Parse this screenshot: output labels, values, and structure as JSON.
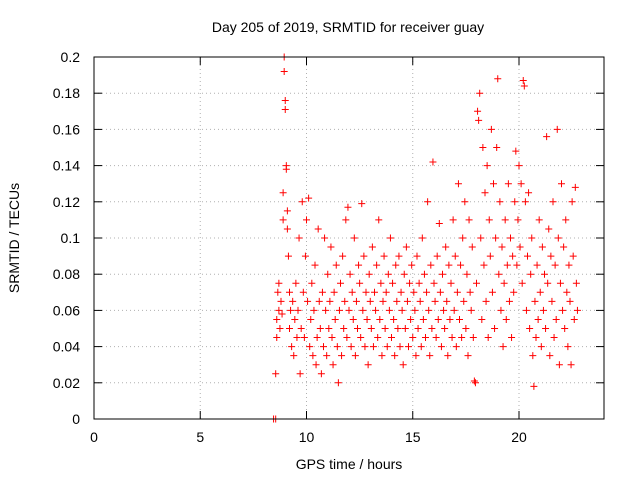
{
  "chart_data": {
    "type": "scatter",
    "title": "Day 205 of 2019, SRMTID for receiver guay",
    "xlabel": "GPS time / hours",
    "ylabel": "SRMTID / TECUs",
    "xlim": [
      0,
      24
    ],
    "ylim": [
      0,
      0.2
    ],
    "xticks": [
      0,
      5,
      10,
      15,
      20
    ],
    "xtick_labels": [
      "0",
      "5",
      "10",
      "15",
      "20"
    ],
    "yticks": [
      0,
      0.02,
      0.04,
      0.06,
      0.08,
      0.1,
      0.12,
      0.14,
      0.16,
      0.18,
      0.2
    ],
    "ytick_labels": [
      "0",
      "0.02",
      "0.04",
      "0.06",
      "0.08",
      "0.1",
      "0.12",
      "0.14",
      "0.16",
      "0.18",
      "0.2"
    ],
    "grid": true,
    "marker": "plus",
    "color": "#ff0000",
    "x_range_of_data": [
      8.4,
      22.8
    ],
    "series": [
      {
        "points": [
          [
            8.45,
            0.0
          ],
          [
            8.55,
            0.0
          ],
          [
            8.55,
            0.025
          ],
          [
            8.6,
            0.055
          ],
          [
            8.6,
            0.045
          ],
          [
            8.65,
            0.07
          ],
          [
            8.7,
            0.06
          ],
          [
            8.7,
            0.075
          ],
          [
            8.75,
            0.05
          ],
          [
            8.8,
            0.065
          ],
          [
            8.85,
            0.058
          ],
          [
            8.9,
            0.11
          ],
          [
            8.9,
            0.125
          ],
          [
            8.95,
            0.2
          ],
          [
            8.95,
            0.192
          ],
          [
            9.0,
            0.176
          ],
          [
            9.0,
            0.171
          ],
          [
            9.05,
            0.14
          ],
          [
            9.05,
            0.138
          ],
          [
            9.1,
            0.115
          ],
          [
            9.1,
            0.105
          ],
          [
            9.15,
            0.09
          ],
          [
            9.2,
            0.07
          ],
          [
            9.2,
            0.05
          ],
          [
            9.25,
            0.06
          ],
          [
            9.3,
            0.04
          ],
          [
            9.35,
            0.065
          ],
          [
            9.4,
            0.035
          ],
          [
            9.45,
            0.055
          ],
          [
            9.5,
            0.075
          ],
          [
            9.55,
            0.045
          ],
          [
            9.6,
            0.06
          ],
          [
            9.65,
            0.1
          ],
          [
            9.7,
            0.025
          ],
          [
            9.75,
            0.05
          ],
          [
            9.8,
            0.12
          ],
          [
            9.85,
            0.07
          ],
          [
            9.9,
            0.045
          ],
          [
            9.95,
            0.09
          ],
          [
            10.0,
            0.11
          ],
          [
            10.05,
            0.065
          ],
          [
            10.1,
            0.122
          ],
          [
            10.15,
            0.04
          ],
          [
            10.2,
            0.055
          ],
          [
            10.25,
            0.075
          ],
          [
            10.3,
            0.035
          ],
          [
            10.35,
            0.06
          ],
          [
            10.4,
            0.085
          ],
          [
            10.45,
            0.03
          ],
          [
            10.5,
            0.045
          ],
          [
            10.55,
            0.105
          ],
          [
            10.6,
            0.065
          ],
          [
            10.65,
            0.05
          ],
          [
            10.7,
            0.025
          ],
          [
            10.75,
            0.07
          ],
          [
            10.8,
            0.04
          ],
          [
            10.85,
            0.1
          ],
          [
            10.9,
            0.06
          ],
          [
            10.95,
            0.035
          ],
          [
            11.0,
            0.08
          ],
          [
            11.05,
            0.05
          ],
          [
            11.1,
            0.065
          ],
          [
            11.15,
            0.095
          ],
          [
            11.2,
            0.045
          ],
          [
            11.25,
            0.03
          ],
          [
            11.3,
            0.07
          ],
          [
            11.35,
            0.055
          ],
          [
            11.4,
            0.085
          ],
          [
            11.45,
            0.04
          ],
          [
            11.5,
            0.02
          ],
          [
            11.55,
            0.06
          ],
          [
            11.6,
            0.075
          ],
          [
            11.65,
            0.035
          ],
          [
            11.7,
            0.09
          ],
          [
            11.75,
            0.05
          ],
          [
            11.8,
            0.065
          ],
          [
            11.85,
            0.11
          ],
          [
            11.9,
            0.045
          ],
          [
            11.95,
            0.117
          ],
          [
            12.0,
            0.06
          ],
          [
            12.05,
            0.08
          ],
          [
            12.1,
            0.04
          ],
          [
            12.15,
            0.07
          ],
          [
            12.2,
            0.055
          ],
          [
            12.25,
            0.1
          ],
          [
            12.3,
            0.035
          ],
          [
            12.35,
            0.065
          ],
          [
            12.4,
            0.05
          ],
          [
            12.45,
            0.085
          ],
          [
            12.5,
            0.075
          ],
          [
            12.55,
            0.045
          ],
          [
            12.6,
            0.119
          ],
          [
            12.65,
            0.06
          ],
          [
            12.7,
            0.09
          ],
          [
            12.75,
            0.04
          ],
          [
            12.8,
            0.07
          ],
          [
            12.85,
            0.055
          ],
          [
            12.9,
            0.03
          ],
          [
            12.95,
            0.08
          ],
          [
            13.0,
            0.065
          ],
          [
            13.05,
            0.05
          ],
          [
            13.1,
            0.095
          ],
          [
            13.15,
            0.04
          ],
          [
            13.2,
            0.07
          ],
          [
            13.25,
            0.06
          ],
          [
            13.3,
            0.085
          ],
          [
            13.35,
            0.045
          ],
          [
            13.4,
            0.11
          ],
          [
            13.45,
            0.055
          ],
          [
            13.5,
            0.075
          ],
          [
            13.55,
            0.035
          ],
          [
            13.6,
            0.065
          ],
          [
            13.65,
            0.09
          ],
          [
            13.7,
            0.05
          ],
          [
            13.75,
            0.07
          ],
          [
            13.8,
            0.04
          ],
          [
            13.85,
            0.08
          ],
          [
            13.9,
            0.06
          ],
          [
            13.95,
            0.1
          ],
          [
            14.0,
            0.045
          ],
          [
            14.05,
            0.075
          ],
          [
            14.1,
            0.055
          ],
          [
            14.15,
            0.035
          ],
          [
            14.2,
            0.085
          ],
          [
            14.25,
            0.065
          ],
          [
            14.3,
            0.05
          ],
          [
            14.35,
            0.09
          ],
          [
            14.4,
            0.04
          ],
          [
            14.45,
            0.07
          ],
          [
            14.5,
            0.06
          ],
          [
            14.55,
            0.03
          ],
          [
            14.6,
            0.08
          ],
          [
            14.65,
            0.05
          ],
          [
            14.7,
            0.095
          ],
          [
            14.75,
            0.065
          ],
          [
            14.8,
            0.04
          ],
          [
            14.85,
            0.075
          ],
          [
            14.9,
            0.055
          ],
          [
            14.95,
            0.085
          ],
          [
            15.0,
            0.045
          ],
          [
            15.05,
            0.07
          ],
          [
            15.1,
            0.06
          ],
          [
            15.15,
            0.035
          ],
          [
            15.2,
            0.09
          ],
          [
            15.25,
            0.05
          ],
          [
            15.3,
            0.075
          ],
          [
            15.35,
            0.065
          ],
          [
            15.4,
            0.04
          ],
          [
            15.45,
            0.1
          ],
          [
            15.5,
            0.055
          ],
          [
            15.55,
            0.08
          ],
          [
            15.6,
            0.045
          ],
          [
            15.65,
            0.07
          ],
          [
            15.7,
            0.12
          ],
          [
            15.75,
            0.06
          ],
          [
            15.8,
            0.035
          ],
          [
            15.85,
            0.085
          ],
          [
            15.9,
            0.05
          ],
          [
            15.95,
            0.142
          ],
          [
            16.0,
            0.075
          ],
          [
            16.05,
            0.065
          ],
          [
            16.1,
            0.045
          ],
          [
            16.15,
            0.09
          ],
          [
            16.2,
            0.055
          ],
          [
            16.25,
            0.108
          ],
          [
            16.3,
            0.07
          ],
          [
            16.35,
            0.04
          ],
          [
            16.4,
            0.08
          ],
          [
            16.45,
            0.06
          ],
          [
            16.5,
            0.05
          ],
          [
            16.55,
            0.095
          ],
          [
            16.6,
            0.065
          ],
          [
            16.65,
            0.035
          ],
          [
            16.7,
            0.085
          ],
          [
            16.75,
            0.055
          ],
          [
            16.8,
            0.075
          ],
          [
            16.85,
            0.045
          ],
          [
            16.9,
            0.11
          ],
          [
            16.95,
            0.06
          ],
          [
            17.0,
            0.09
          ],
          [
            17.05,
            0.04
          ],
          [
            17.1,
            0.07
          ],
          [
            17.15,
            0.13
          ],
          [
            17.2,
            0.055
          ],
          [
            17.25,
            0.085
          ],
          [
            17.3,
            0.045
          ],
          [
            17.35,
            0.1
          ],
          [
            17.4,
            0.065
          ],
          [
            17.45,
            0.12
          ],
          [
            17.5,
            0.05
          ],
          [
            17.55,
            0.08
          ],
          [
            17.6,
            0.035
          ],
          [
            17.65,
            0.11
          ],
          [
            17.7,
            0.07
          ],
          [
            17.75,
            0.06
          ],
          [
            17.8,
            0.095
          ],
          [
            17.85,
            0.045
          ],
          [
            17.9,
            0.021
          ],
          [
            17.95,
            0.02
          ],
          [
            18.0,
            0.075
          ],
          [
            18.05,
            0.17
          ],
          [
            18.1,
            0.165
          ],
          [
            18.15,
            0.18
          ],
          [
            18.2,
            0.1
          ],
          [
            18.25,
            0.055
          ],
          [
            18.3,
            0.15
          ],
          [
            18.35,
            0.085
          ],
          [
            18.4,
            0.125
          ],
          [
            18.45,
            0.065
          ],
          [
            18.5,
            0.14
          ],
          [
            18.55,
            0.045
          ],
          [
            18.6,
            0.11
          ],
          [
            18.65,
            0.09
          ],
          [
            18.7,
            0.16
          ],
          [
            18.75,
            0.07
          ],
          [
            18.8,
            0.13
          ],
          [
            18.85,
            0.05
          ],
          [
            18.9,
            0.1
          ],
          [
            18.95,
            0.15
          ],
          [
            19.0,
            0.188
          ],
          [
            19.05,
            0.08
          ],
          [
            19.1,
            0.12
          ],
          [
            19.15,
            0.06
          ],
          [
            19.2,
            0.095
          ],
          [
            19.25,
            0.04
          ],
          [
            19.3,
            0.075
          ],
          [
            19.35,
            0.11
          ],
          [
            19.4,
            0.055
          ],
          [
            19.45,
            0.085
          ],
          [
            19.5,
            0.13
          ],
          [
            19.55,
            0.065
          ],
          [
            19.6,
            0.1
          ],
          [
            19.65,
            0.045
          ],
          [
            19.7,
            0.09
          ],
          [
            19.75,
            0.07
          ],
          [
            19.8,
            0.12
          ],
          [
            19.85,
            0.148
          ],
          [
            19.9,
            0.085
          ],
          [
            19.95,
            0.11
          ],
          [
            20.0,
            0.14
          ],
          [
            20.05,
            0.095
          ],
          [
            20.1,
            0.13
          ],
          [
            20.15,
            0.075
          ],
          [
            20.2,
            0.187
          ],
          [
            20.25,
            0.184
          ],
          [
            20.3,
            0.12
          ],
          [
            20.35,
            0.06
          ],
          [
            20.4,
            0.09
          ],
          [
            20.45,
            0.125
          ],
          [
            20.5,
            0.05
          ],
          [
            20.55,
            0.08
          ],
          [
            20.6,
            0.1
          ],
          [
            20.65,
            0.035
          ],
          [
            20.7,
            0.018
          ],
          [
            20.75,
            0.065
          ],
          [
            20.8,
            0.045
          ],
          [
            20.85,
            0.085
          ],
          [
            20.9,
            0.055
          ],
          [
            20.95,
            0.11
          ],
          [
            21.0,
            0.07
          ],
          [
            21.05,
            0.04
          ],
          [
            21.1,
            0.095
          ],
          [
            21.15,
            0.06
          ],
          [
            21.2,
            0.08
          ],
          [
            21.25,
            0.05
          ],
          [
            21.3,
            0.156
          ],
          [
            21.35,
            0.075
          ],
          [
            21.4,
            0.105
          ],
          [
            21.45,
            0.035
          ],
          [
            21.5,
            0.09
          ],
          [
            21.55,
            0.065
          ],
          [
            21.6,
            0.12
          ],
          [
            21.65,
            0.045
          ],
          [
            21.7,
            0.085
          ],
          [
            21.75,
            0.055
          ],
          [
            21.8,
            0.16
          ],
          [
            21.85,
            0.1
          ],
          [
            21.9,
            0.03
          ],
          [
            21.95,
            0.075
          ],
          [
            22.0,
            0.13
          ],
          [
            22.05,
            0.06
          ],
          [
            22.1,
            0.095
          ],
          [
            22.15,
            0.05
          ],
          [
            22.2,
            0.11
          ],
          [
            22.25,
            0.07
          ],
          [
            22.3,
            0.04
          ],
          [
            22.35,
            0.085
          ],
          [
            22.4,
            0.065
          ],
          [
            22.45,
            0.03
          ],
          [
            22.5,
            0.12
          ],
          [
            22.55,
            0.09
          ],
          [
            22.6,
            0.055
          ],
          [
            22.65,
            0.128
          ],
          [
            22.7,
            0.075
          ],
          [
            22.75,
            0.06
          ]
        ]
      }
    ]
  }
}
